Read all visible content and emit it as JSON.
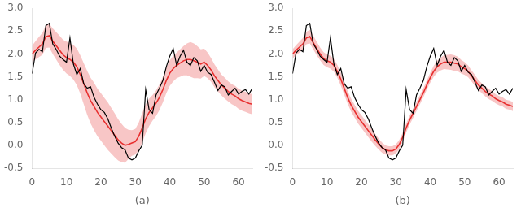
{
  "chart_data": [
    {
      "type": "line",
      "xlabel": "(a)",
      "x": [
        0,
        1,
        2,
        3,
        4,
        5,
        6,
        7,
        8,
        9,
        10,
        11,
        12,
        13,
        14,
        15,
        16,
        17,
        18,
        19,
        20,
        21,
        22,
        23,
        24,
        25,
        26,
        27,
        28,
        29,
        30,
        31,
        32,
        33,
        34,
        35,
        36,
        37,
        38,
        39,
        40,
        41,
        42,
        43,
        44,
        45,
        46,
        47,
        48,
        49,
        50,
        51,
        52,
        53,
        54,
        55,
        56,
        57,
        58,
        59,
        60,
        61,
        62,
        63,
        64
      ],
      "series": [
        {
          "type": "area",
          "color": "#f08080",
          "lower": [
            1.82,
            1.88,
            1.93,
            1.98,
            2.13,
            2.14,
            2.0,
            1.88,
            1.76,
            1.65,
            1.57,
            1.52,
            1.44,
            1.32,
            1.13,
            0.9,
            0.67,
            0.48,
            0.33,
            0.2,
            0.1,
            0.0,
            -0.1,
            -0.18,
            -0.26,
            -0.33,
            -0.37,
            -0.38,
            -0.3,
            -0.23,
            -0.2,
            -0.1,
            0.06,
            0.26,
            0.42,
            0.54,
            0.64,
            0.77,
            0.94,
            1.14,
            1.3,
            1.4,
            1.47,
            1.5,
            1.53,
            1.53,
            1.5,
            1.47,
            1.47,
            1.46,
            1.52,
            1.47,
            1.39,
            1.27,
            1.18,
            1.09,
            1.02,
            0.96,
            0.9,
            0.86,
            0.8,
            0.76,
            0.73,
            0.7,
            0.68
          ],
          "upper": [
            2.18,
            2.28,
            2.37,
            2.46,
            2.63,
            2.66,
            2.56,
            2.48,
            2.4,
            2.31,
            2.27,
            2.24,
            2.2,
            2.12,
            1.97,
            1.8,
            1.63,
            1.48,
            1.37,
            1.24,
            1.14,
            1.04,
            0.94,
            0.82,
            0.7,
            0.57,
            0.47,
            0.38,
            0.34,
            0.33,
            0.36,
            0.5,
            0.7,
            0.9,
            1.02,
            1.1,
            1.2,
            1.33,
            1.5,
            1.7,
            1.86,
            1.96,
            2.03,
            2.1,
            2.17,
            2.23,
            2.26,
            2.23,
            2.17,
            2.1,
            2.12,
            2.03,
            1.91,
            1.77,
            1.66,
            1.55,
            1.48,
            1.4,
            1.34,
            1.3,
            1.24,
            1.2,
            1.17,
            1.14,
            1.12
          ]
        },
        {
          "color": "#e83030",
          "values": [
            2.0,
            2.08,
            2.15,
            2.22,
            2.38,
            2.4,
            2.28,
            2.18,
            2.08,
            1.98,
            1.92,
            1.88,
            1.82,
            1.72,
            1.55,
            1.35,
            1.15,
            0.98,
            0.85,
            0.72,
            0.62,
            0.52,
            0.42,
            0.32,
            0.22,
            0.12,
            0.05,
            0.0,
            0.02,
            0.05,
            0.08,
            0.2,
            0.38,
            0.58,
            0.72,
            0.82,
            0.92,
            1.05,
            1.22,
            1.42,
            1.58,
            1.68,
            1.75,
            1.8,
            1.85,
            1.88,
            1.88,
            1.85,
            1.82,
            1.78,
            1.82,
            1.75,
            1.65,
            1.52,
            1.42,
            1.32,
            1.25,
            1.18,
            1.12,
            1.08,
            1.02,
            0.98,
            0.95,
            0.92,
            0.9
          ]
        },
        {
          "color": "#000000",
          "values": [
            1.57,
            2.02,
            2.1,
            2.05,
            2.62,
            2.67,
            2.22,
            2.1,
            1.95,
            1.88,
            1.82,
            2.35,
            1.78,
            1.55,
            1.68,
            1.35,
            1.25,
            1.28,
            1.05,
            0.9,
            0.78,
            0.72,
            0.58,
            0.38,
            0.2,
            0.05,
            -0.05,
            -0.1,
            -0.28,
            -0.32,
            -0.28,
            -0.12,
            0.0,
            1.22,
            0.78,
            0.7,
            1.1,
            1.25,
            1.42,
            1.72,
            1.95,
            2.12,
            1.75,
            1.95,
            2.08,
            1.82,
            1.75,
            1.92,
            1.85,
            1.62,
            1.75,
            1.6,
            1.55,
            1.38,
            1.2,
            1.32,
            1.28,
            1.1,
            1.18,
            1.25,
            1.12,
            1.18,
            1.22,
            1.12,
            1.25
          ]
        }
      ],
      "xlim": [
        0,
        64
      ],
      "ylim": [
        -0.5,
        3.0
      ],
      "xticks": [
        0,
        10,
        20,
        30,
        40,
        50,
        60
      ],
      "yticks": [
        -0.5,
        {
          "value": 0,
          "label": "0.0"
        },
        0.5,
        {
          "value": 1,
          "label": "1.0"
        },
        1.5,
        {
          "value": 2,
          "label": "2.0"
        },
        2.5,
        {
          "value": 3,
          "label": "3.0"
        }
      ],
      "grid": false
    },
    {
      "type": "line",
      "xlabel": "(b)",
      "x": [
        0,
        1,
        2,
        3,
        4,
        5,
        6,
        7,
        8,
        9,
        10,
        11,
        12,
        13,
        14,
        15,
        16,
        17,
        18,
        19,
        20,
        21,
        22,
        23,
        24,
        25,
        26,
        27,
        28,
        29,
        30,
        31,
        32,
        33,
        34,
        35,
        36,
        37,
        38,
        39,
        40,
        41,
        42,
        43,
        44,
        45,
        46,
        47,
        48,
        49,
        50,
        51,
        52,
        53,
        54,
        55,
        56,
        57,
        58,
        59,
        60,
        61,
        62,
        63,
        64
      ],
      "series": [
        {
          "type": "area",
          "color": "#f08080",
          "lower": [
            1.9,
            1.97,
            2.03,
            2.09,
            2.21,
            2.23,
            2.1,
            1.97,
            1.86,
            1.76,
            1.71,
            1.68,
            1.61,
            1.48,
            1.31,
            1.11,
            0.91,
            0.74,
            0.61,
            0.48,
            0.38,
            0.28,
            0.18,
            0.08,
            -0.01,
            -0.09,
            -0.16,
            -0.2,
            -0.22,
            -0.22,
            -0.18,
            -0.08,
            0.08,
            0.28,
            0.45,
            0.6,
            0.75,
            0.9,
            1.05,
            1.22,
            1.37,
            1.5,
            1.59,
            1.64,
            1.67,
            1.66,
            1.65,
            1.63,
            1.62,
            1.57,
            1.54,
            1.49,
            1.4,
            1.3,
            1.21,
            1.14,
            1.07,
            1.01,
            0.97,
            0.92,
            0.88,
            0.85,
            0.8,
            0.78,
            0.75
          ],
          "upper": [
            2.1,
            2.19,
            2.27,
            2.35,
            2.49,
            2.53,
            2.4,
            2.27,
            2.14,
            2.04,
            1.99,
            1.96,
            1.89,
            1.76,
            1.59,
            1.39,
            1.19,
            1.02,
            0.89,
            0.76,
            0.66,
            0.56,
            0.46,
            0.36,
            0.25,
            0.15,
            0.06,
            0.0,
            -0.02,
            -0.02,
            0.02,
            0.12,
            0.28,
            0.48,
            0.65,
            0.8,
            0.95,
            1.1,
            1.25,
            1.42,
            1.59,
            1.74,
            1.85,
            1.92,
            1.97,
            1.98,
            1.99,
            1.97,
            1.94,
            1.87,
            1.82,
            1.75,
            1.64,
            1.54,
            1.43,
            1.36,
            1.29,
            1.23,
            1.19,
            1.12,
            1.08,
            1.05,
            1.0,
            0.98,
            0.95
          ]
        },
        {
          "color": "#e83030",
          "values": [
            2.0,
            2.08,
            2.15,
            2.22,
            2.35,
            2.38,
            2.25,
            2.12,
            2.0,
            1.9,
            1.85,
            1.82,
            1.75,
            1.62,
            1.45,
            1.25,
            1.05,
            0.88,
            0.75,
            0.62,
            0.52,
            0.42,
            0.32,
            0.22,
            0.12,
            0.03,
            -0.05,
            -0.1,
            -0.12,
            -0.12,
            -0.08,
            0.02,
            0.18,
            0.38,
            0.55,
            0.7,
            0.85,
            1.0,
            1.15,
            1.32,
            1.48,
            1.62,
            1.72,
            1.78,
            1.82,
            1.82,
            1.82,
            1.8,
            1.78,
            1.72,
            1.68,
            1.62,
            1.52,
            1.42,
            1.32,
            1.25,
            1.18,
            1.12,
            1.08,
            1.02,
            0.98,
            0.95,
            0.9,
            0.88,
            0.85
          ]
        },
        {
          "color": "#000000",
          "values": [
            1.57,
            2.02,
            2.1,
            2.05,
            2.62,
            2.67,
            2.22,
            2.1,
            1.95,
            1.88,
            1.82,
            2.35,
            1.78,
            1.55,
            1.68,
            1.35,
            1.25,
            1.28,
            1.05,
            0.9,
            0.78,
            0.72,
            0.58,
            0.38,
            0.2,
            0.05,
            -0.05,
            -0.1,
            -0.28,
            -0.32,
            -0.28,
            -0.12,
            0.0,
            1.22,
            0.78,
            0.7,
            1.1,
            1.25,
            1.42,
            1.72,
            1.95,
            2.12,
            1.75,
            1.95,
            2.08,
            1.82,
            1.75,
            1.92,
            1.85,
            1.62,
            1.75,
            1.6,
            1.55,
            1.38,
            1.2,
            1.32,
            1.28,
            1.1,
            1.18,
            1.25,
            1.12,
            1.18,
            1.22,
            1.12,
            1.25
          ]
        }
      ],
      "xlim": [
        0,
        64
      ],
      "ylim": [
        -0.5,
        3.0
      ],
      "xticks": [
        0,
        10,
        20,
        30,
        40,
        50,
        60
      ],
      "yticks": [
        -0.5,
        {
          "value": 0,
          "label": "0.0"
        },
        0.5,
        {
          "value": 1,
          "label": "1.0"
        },
        1.5,
        {
          "value": 2,
          "label": "2.0"
        },
        2.5,
        {
          "value": 3,
          "label": "3.0"
        }
      ],
      "grid": false
    }
  ]
}
